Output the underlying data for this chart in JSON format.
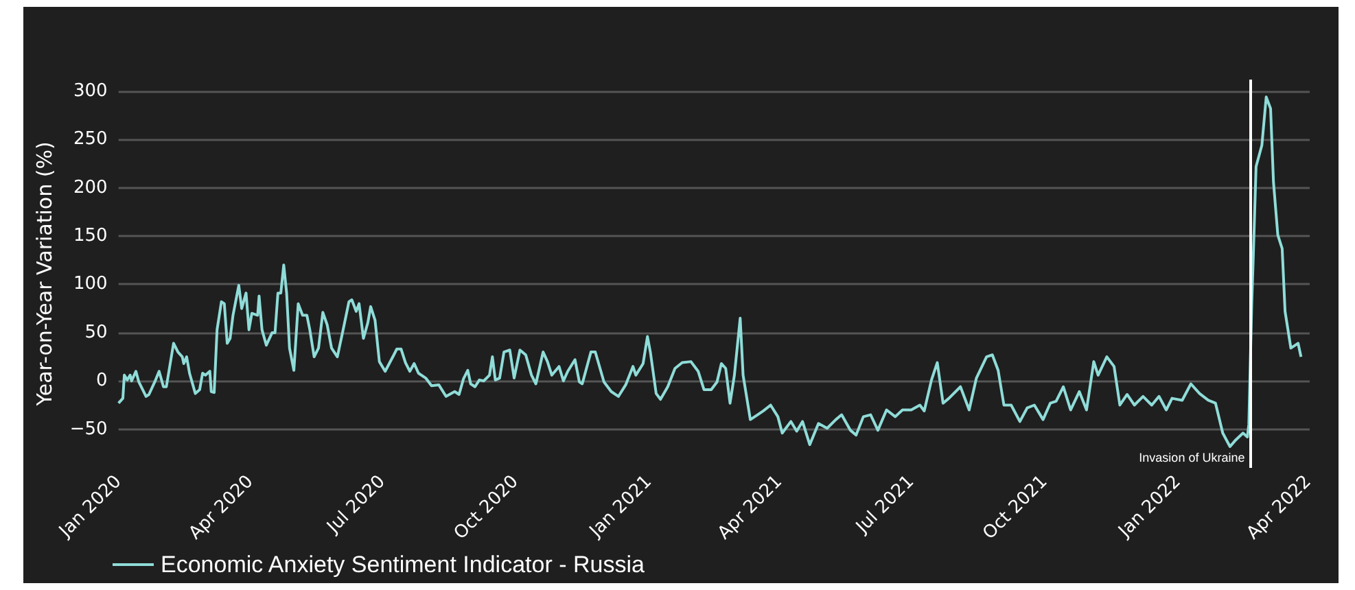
{
  "chart_data": {
    "type": "line",
    "ylabel": "Year-on-Year Variation (%)",
    "x": [
      "2020-01-01",
      "2020-01-04",
      "2020-01-05",
      "2020-01-07",
      "2020-01-09",
      "2020-01-10",
      "2020-01-13",
      "2020-01-15",
      "2020-01-20",
      "2020-01-22",
      "2020-01-26",
      "2020-01-29",
      "2020-02-01",
      "2020-02-03",
      "2020-02-08",
      "2020-02-11",
      "2020-02-14",
      "2020-02-15",
      "2020-02-17",
      "2020-02-19",
      "2020-02-23",
      "2020-02-26",
      "2020-02-28",
      "2020-03-01",
      "2020-03-04",
      "2020-03-05",
      "2020-03-07",
      "2020-03-09",
      "2020-03-12",
      "2020-03-14",
      "2020-03-16",
      "2020-03-18",
      "2020-03-20",
      "2020-03-24",
      "2020-03-26",
      "2020-03-29",
      "2020-03-31",
      "2020-04-02",
      "2020-04-06",
      "2020-04-07",
      "2020-04-09",
      "2020-04-12",
      "2020-04-16",
      "2020-04-18",
      "2020-04-20",
      "2020-04-22",
      "2020-04-24",
      "2020-04-26",
      "2020-04-28",
      "2020-05-01",
      "2020-05-04",
      "2020-05-07",
      "2020-05-10",
      "2020-05-12",
      "2020-05-15",
      "2020-05-18",
      "2020-05-21",
      "2020-05-24",
      "2020-05-27",
      "2020-05-31",
      "2020-06-04",
      "2020-06-08",
      "2020-06-10",
      "2020-06-13",
      "2020-06-15",
      "2020-06-18",
      "2020-06-21",
      "2020-06-23",
      "2020-06-26",
      "2020-06-29",
      "2020-07-03",
      "2020-07-09",
      "2020-07-11",
      "2020-07-14",
      "2020-07-17",
      "2020-07-20",
      "2020-07-23",
      "2020-07-26",
      "2020-07-31",
      "2020-08-04",
      "2020-08-09",
      "2020-08-14",
      "2020-08-20",
      "2020-08-23",
      "2020-08-26",
      "2020-08-29",
      "2020-08-31",
      "2020-09-03",
      "2020-09-06",
      "2020-09-09",
      "2020-09-13",
      "2020-09-15",
      "2020-09-17",
      "2020-09-20",
      "2020-09-23",
      "2020-09-27",
      "2020-09-30",
      "2020-10-04",
      "2020-10-08",
      "2020-10-12",
      "2020-10-15",
      "2020-10-20",
      "2020-10-23",
      "2020-10-26",
      "2020-10-31",
      "2020-11-03",
      "2020-11-06",
      "2020-11-11",
      "2020-11-14",
      "2020-11-16",
      "2020-11-22",
      "2020-11-25",
      "2020-12-01",
      "2020-12-06",
      "2020-12-11",
      "2020-12-16",
      "2020-12-21",
      "2020-12-23",
      "2020-12-28",
      "2020-12-31",
      "2021-01-02",
      "2021-01-06",
      "2021-01-09",
      "2021-01-14",
      "2021-01-19",
      "2021-01-24",
      "2021-01-30",
      "2021-02-04",
      "2021-02-08",
      "2021-02-13",
      "2021-02-17",
      "2021-02-20",
      "2021-02-23",
      "2021-02-26",
      "2021-03-01",
      "2021-03-05",
      "2021-03-07",
      "2021-03-12",
      "2021-03-17",
      "2021-03-21",
      "2021-03-26",
      "2021-03-31",
      "2021-04-03",
      "2021-04-09",
      "2021-04-13",
      "2021-04-17",
      "2021-04-22",
      "2021-04-28",
      "2021-05-04",
      "2021-05-10",
      "2021-05-14",
      "2021-05-20",
      "2021-05-24",
      "2021-05-29",
      "2021-06-03",
      "2021-06-08",
      "2021-06-14",
      "2021-06-20",
      "2021-06-25",
      "2021-07-01",
      "2021-07-07",
      "2021-07-10",
      "2021-07-15",
      "2021-07-19",
      "2021-07-23",
      "2021-07-27",
      "2021-08-04",
      "2021-08-10",
      "2021-08-15",
      "2021-08-22",
      "2021-08-26",
      "2021-08-30",
      "2021-09-03",
      "2021-09-08",
      "2021-09-14",
      "2021-09-19",
      "2021-09-24",
      "2021-09-30",
      "2021-10-05",
      "2021-10-09",
      "2021-10-14",
      "2021-10-19",
      "2021-10-25",
      "2021-10-30",
      "2021-11-04",
      "2021-11-07",
      "2021-11-13",
      "2021-11-18",
      "2021-11-22",
      "2021-11-27",
      "2021-12-02",
      "2021-12-08",
      "2021-12-14",
      "2021-12-19",
      "2021-12-24",
      "2021-12-28",
      "2022-01-04",
      "2022-01-10",
      "2022-01-16",
      "2022-01-22",
      "2022-01-27",
      "2022-02-01",
      "2022-02-06",
      "2022-02-10",
      "2022-02-15",
      "2022-02-18",
      "2022-02-19",
      "2022-02-21",
      "2022-02-22",
      "2022-02-24",
      "2022-02-28",
      "2022-03-03",
      "2022-03-06",
      "2022-03-08",
      "2022-03-11",
      "2022-03-14",
      "2022-03-16",
      "2022-03-20",
      "2022-03-25",
      "2022-03-27"
    ],
    "series": [
      {
        "name": "Economic Anxiety Sentiment Indicator - Russia",
        "color": "#8fdcd8",
        "values": [
          -23,
          -18,
          6,
          1,
          6,
          0,
          10,
          -1,
          -16,
          -14,
          -1,
          10,
          -6,
          -6,
          39,
          30,
          25,
          18,
          25,
          8,
          -13,
          -9,
          8,
          6,
          10,
          -11,
          -12,
          53,
          82,
          80,
          39,
          44,
          68,
          99,
          75,
          91,
          53,
          70,
          68,
          88,
          53,
          37,
          50,
          50,
          91,
          91,
          120,
          91,
          34,
          11,
          80,
          68,
          68,
          53,
          25,
          34,
          71,
          58,
          34,
          25,
          53,
          82,
          84,
          72,
          80,
          44,
          60,
          77,
          63,
          20,
          10,
          27,
          33,
          33,
          19,
          10,
          18,
          8,
          3,
          -5,
          -4,
          -16,
          -11,
          -14,
          2,
          11,
          -3,
          -6,
          1,
          0,
          6,
          25,
          1,
          3,
          30,
          32,
          3,
          32,
          27,
          6,
          -3,
          30,
          20,
          6,
          15,
          0,
          10,
          22,
          -1,
          -3,
          30,
          30,
          -1,
          -11,
          -16,
          -4,
          15,
          6,
          18,
          46,
          30,
          -13,
          -19,
          -6,
          13,
          19,
          20,
          10,
          -9,
          -9,
          -1,
          18,
          13,
          -23,
          6,
          65,
          6,
          -40,
          -35,
          -31,
          -25,
          -37,
          -54,
          -42,
          -52,
          -42,
          -66,
          -44,
          -49,
          -40,
          -35,
          -51,
          -56,
          -37,
          -35,
          -51,
          -30,
          -37,
          -30,
          -30,
          -25,
          -31,
          1,
          19,
          -23,
          -18,
          -6,
          -30,
          3,
          25,
          27,
          11,
          -25,
          -25,
          -42,
          -28,
          -25,
          -40,
          -23,
          -21,
          -6,
          -30,
          -11,
          -30,
          20,
          6,
          25,
          15,
          -25,
          -14,
          -25,
          -16,
          -25,
          -16,
          -30,
          -18,
          -20,
          -3,
          -13,
          -20,
          -23,
          -54,
          -68,
          -61,
          -54,
          -58,
          -45,
          80,
          125,
          222,
          244,
          294,
          282,
          206,
          151,
          137,
          72,
          34,
          39,
          25
        ]
      }
    ],
    "xlim": [
      "2020-01-01",
      "2022-04-02"
    ],
    "xticks": [
      {
        "value": "2020-01-01",
        "label": "Jan 2020"
      },
      {
        "value": "2020-04-01",
        "label": "Apr 2020"
      },
      {
        "value": "2020-07-01",
        "label": "Jul 2020"
      },
      {
        "value": "2020-10-01",
        "label": "Oct 2020"
      },
      {
        "value": "2021-01-01",
        "label": "Jan 2021"
      },
      {
        "value": "2021-04-01",
        "label": "Apr 2021"
      },
      {
        "value": "2021-07-01",
        "label": "Jul 2021"
      },
      {
        "value": "2021-10-01",
        "label": "Oct 2021"
      },
      {
        "value": "2022-01-01",
        "label": "Jan 2022"
      },
      {
        "value": "2022-04-01",
        "label": "Apr 2022"
      }
    ],
    "ylim": [
      -90,
      312
    ],
    "yticks": [
      -50,
      0,
      50,
      100,
      150,
      200,
      250,
      300
    ],
    "ref_lines": [
      {
        "axis": "x",
        "value": "2022-02-20",
        "label": "Invasion of Ukraine",
        "color": "#ffffff"
      }
    ],
    "grid": "y",
    "legend": "bottom left",
    "marker": "none",
    "line_style": "solid"
  }
}
